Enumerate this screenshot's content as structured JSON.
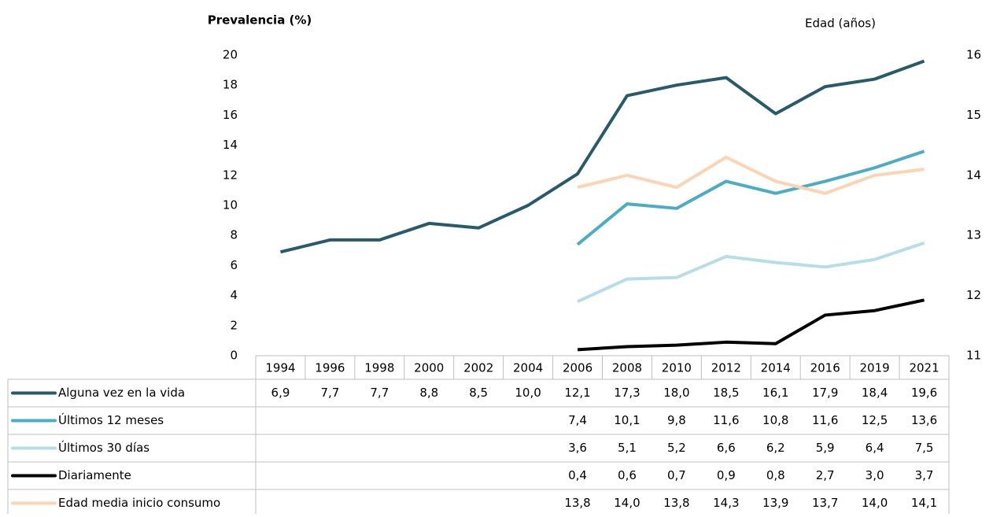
{
  "chart_data": {
    "type": "line",
    "y_label": "Prevalencia (%)",
    "y2_label": "Edad (años)",
    "categories": [
      "1994",
      "1996",
      "1998",
      "2000",
      "2002",
      "2004",
      "2006",
      "2008",
      "2010",
      "2012",
      "2014",
      "2016",
      "2019",
      "2021"
    ],
    "ylim": [
      0,
      20
    ],
    "yticks": [
      0,
      2,
      4,
      6,
      8,
      10,
      12,
      14,
      16,
      18,
      20
    ],
    "y2lim": [
      11,
      16
    ],
    "y2ticks": [
      11,
      12,
      13,
      14,
      15,
      16
    ],
    "grid": false,
    "series": [
      {
        "name": "Alguna vez en la vida",
        "color": "#275a6b",
        "values": [
          6.9,
          7.7,
          7.7,
          8.8,
          8.5,
          10.0,
          12.1,
          17.3,
          18.0,
          18.5,
          16.1,
          17.9,
          18.4,
          19.6
        ],
        "value_labels": [
          "6,9",
          "7,7",
          "7,7",
          "8,8",
          "8,5",
          "10,0",
          "12,1",
          "17,3",
          "18,0",
          "18,5",
          "16,1",
          "17,9",
          "18,4",
          "19,6"
        ]
      },
      {
        "name": "Últimos 12 meses",
        "color": "#4bacc6",
        "values": [
          null,
          null,
          null,
          null,
          null,
          null,
          7.4,
          10.1,
          9.8,
          11.6,
          10.8,
          11.6,
          12.5,
          13.6
        ],
        "value_labels": [
          null,
          null,
          null,
          null,
          null,
          null,
          "7,4",
          "10,1",
          "9,8",
          "11,6",
          "10,8",
          "11,6",
          "12,5",
          "13,6"
        ]
      },
      {
        "name": "Últimos 30 días",
        "color": "#b7dde8",
        "values": [
          null,
          null,
          null,
          null,
          null,
          null,
          3.6,
          5.1,
          5.2,
          6.6,
          6.2,
          5.9,
          6.4,
          7.5
        ],
        "value_labels": [
          null,
          null,
          null,
          null,
          null,
          null,
          "3,6",
          "5,1",
          "5,2",
          "6,6",
          "6,2",
          "5,9",
          "6,4",
          "7,5"
        ]
      },
      {
        "name": "Diariamente",
        "color": "#000000",
        "values": [
          null,
          null,
          null,
          null,
          null,
          null,
          0.4,
          0.6,
          0.7,
          0.9,
          0.8,
          2.7,
          3.0,
          3.7
        ],
        "value_labels": [
          null,
          null,
          null,
          null,
          null,
          null,
          "0,4",
          "0,6",
          "0,7",
          "0,9",
          "0,8",
          "2,7",
          "3,0",
          "3,7"
        ]
      },
      {
        "name": "Edad media inicio consumo",
        "color": "#fbd4b4",
        "axis": "y2",
        "values": [
          null,
          null,
          null,
          null,
          null,
          null,
          13.8,
          14.0,
          13.8,
          14.3,
          13.9,
          13.7,
          14.0,
          14.1
        ],
        "value_labels": [
          null,
          null,
          null,
          null,
          null,
          null,
          "13,8",
          "14,0",
          "13,8",
          "14,3",
          "13,9",
          "13,7",
          "14,0",
          "14,1"
        ]
      }
    ]
  }
}
